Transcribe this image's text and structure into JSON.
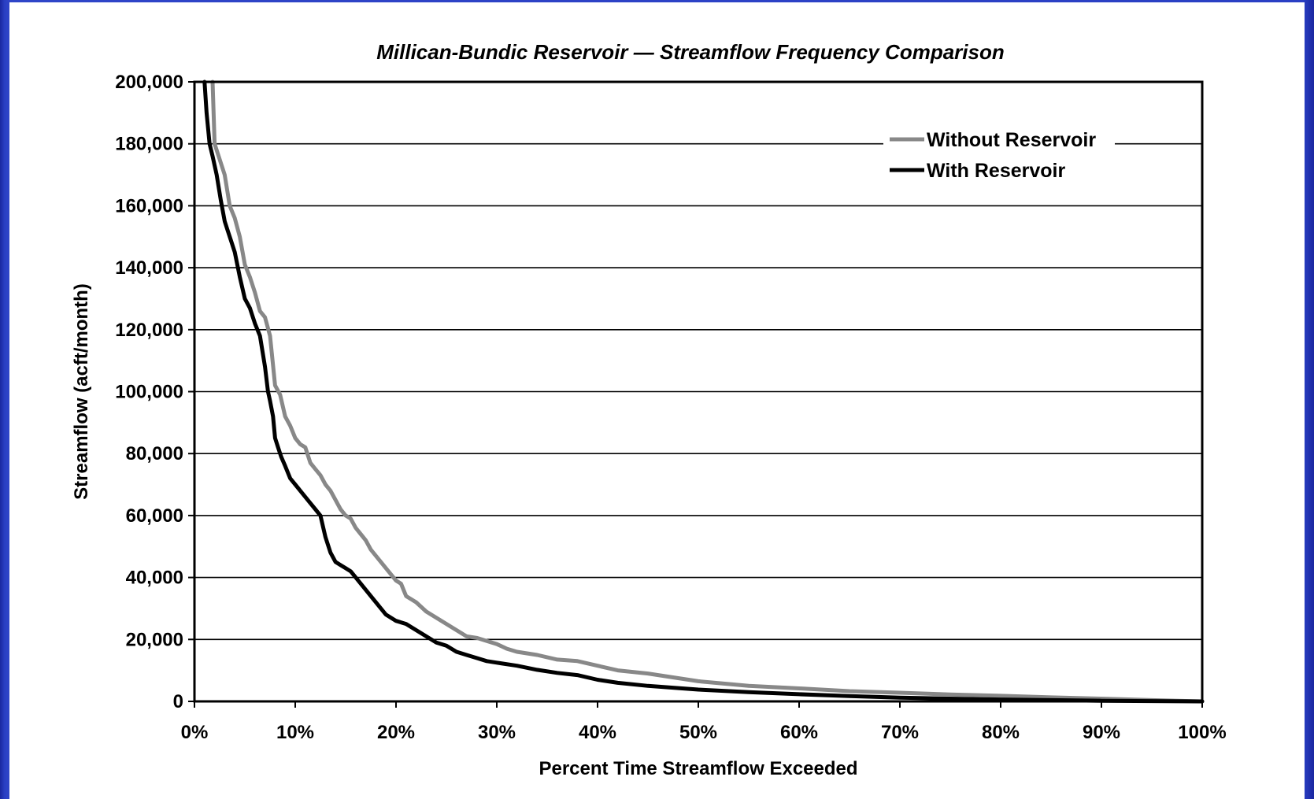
{
  "chart_data": {
    "type": "line",
    "title": "Millican-Bundic Reservoir — Streamflow Frequency Comparison",
    "xlabel": "Percent Time Streamflow Exceeded",
    "ylabel": "Streamflow (acft/month)",
    "xlim": [
      0,
      100
    ],
    "ylim": [
      0,
      200000
    ],
    "x_ticks": [
      "0%",
      "10%",
      "20%",
      "30%",
      "40%",
      "50%",
      "60%",
      "70%",
      "80%",
      "90%",
      "100%"
    ],
    "y_ticks": [
      "0",
      "20,000",
      "40,000",
      "60,000",
      "80,000",
      "100,000",
      "120,000",
      "140,000",
      "160,000",
      "180,000",
      "200,000"
    ],
    "x_tick_values": [
      0,
      10,
      20,
      30,
      40,
      50,
      60,
      70,
      80,
      90,
      100
    ],
    "y_tick_values": [
      0,
      20000,
      40000,
      60000,
      80000,
      100000,
      120000,
      140000,
      160000,
      180000,
      200000
    ],
    "grid": "horizontal",
    "legend_position": "top-right",
    "series": [
      {
        "name": "Without Reservoir",
        "color": "#888888",
        "x": [
          1.8,
          2.0,
          2.5,
          3.0,
          3.5,
          4.0,
          4.5,
          5.0,
          5.5,
          6.0,
          6.5,
          7.0,
          7.5,
          8.0,
          8.5,
          9.0,
          9.5,
          10.0,
          10.5,
          11.0,
          11.5,
          12.0,
          12.5,
          13.0,
          13.5,
          14.0,
          14.5,
          15.0,
          15.5,
          16.0,
          16.5,
          17.0,
          17.5,
          18.0,
          18.5,
          19.0,
          19.5,
          20.0,
          20.5,
          21.0,
          22.0,
          23.0,
          24.0,
          25.0,
          26.0,
          27.0,
          28.0,
          29.0,
          30.0,
          31.0,
          32.0,
          34.0,
          36.0,
          38.0,
          40.0,
          42.0,
          45.0,
          48.0,
          50.0,
          55.0,
          60.0,
          65.0,
          70.0,
          75.0,
          80.0,
          85.0,
          90.0,
          95.0,
          100.0
        ],
        "y": [
          200000,
          180000,
          175000,
          170000,
          160000,
          156000,
          150000,
          141000,
          137000,
          132000,
          126000,
          124000,
          118000,
          102000,
          99000,
          92000,
          89000,
          85000,
          83000,
          82000,
          77000,
          75000,
          73000,
          70000,
          68000,
          65000,
          62000,
          60000,
          59000,
          56000,
          54000,
          52000,
          49000,
          47000,
          45000,
          43000,
          41000,
          39000,
          38000,
          34000,
          32000,
          29000,
          27000,
          25000,
          23000,
          21000,
          20500,
          19500,
          18500,
          17000,
          16000,
          15000,
          13500,
          13000,
          11500,
          10000,
          9000,
          7500,
          6500,
          5000,
          4200,
          3300,
          2800,
          2200,
          1800,
          1300,
          900,
          400,
          0
        ]
      },
      {
        "name": "With Reservoir",
        "color": "#000000",
        "x": [
          1.0,
          1.2,
          1.5,
          1.8,
          2.2,
          2.6,
          3.0,
          3.3,
          3.6,
          4.0,
          4.5,
          5.0,
          5.5,
          6.0,
          6.5,
          7.0,
          7.3,
          7.5,
          7.8,
          8.0,
          8.3,
          8.6,
          9.0,
          9.5,
          10.0,
          10.5,
          11.0,
          11.5,
          12.0,
          12.5,
          13.0,
          13.5,
          14.0,
          14.5,
          15.0,
          15.5,
          16.0,
          17.0,
          18.0,
          19.0,
          20.0,
          21.0,
          22.0,
          23.0,
          24.0,
          25.0,
          26.0,
          27.0,
          28.0,
          29.0,
          30.0,
          32.0,
          34.0,
          36.0,
          38.0,
          40.0,
          42.0,
          45.0,
          48.0,
          50.0,
          55.0,
          60.0,
          65.0,
          70.0,
          75.0,
          80.0,
          85.0,
          90.0,
          95.0,
          100.0
        ],
        "y": [
          200000,
          190000,
          180000,
          176000,
          170000,
          162000,
          155000,
          152000,
          149000,
          145000,
          137000,
          130000,
          127000,
          122000,
          118000,
          108000,
          100000,
          97000,
          92000,
          85000,
          82000,
          79000,
          76000,
          72000,
          70000,
          68000,
          66000,
          64000,
          62000,
          60000,
          53000,
          48000,
          45000,
          44000,
          43000,
          42000,
          40000,
          36000,
          32000,
          28000,
          26000,
          25000,
          23000,
          21000,
          19000,
          18000,
          16000,
          15000,
          14000,
          13000,
          12500,
          11500,
          10200,
          9200,
          8500,
          7000,
          6000,
          5000,
          4300,
          3800,
          3000,
          2300,
          1700,
          1200,
          900,
          600,
          400,
          200,
          100,
          0
        ]
      }
    ]
  }
}
